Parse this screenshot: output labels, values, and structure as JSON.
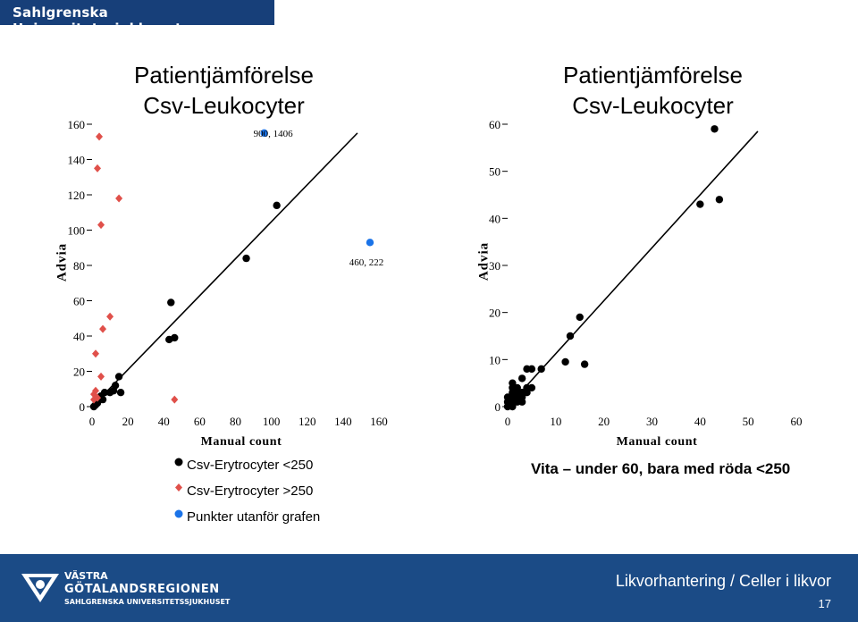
{
  "header": {
    "org_name": "Sahlgrenska Universitetssjukhuset"
  },
  "chart_data": [
    {
      "type": "scatter",
      "title": "Patientjämförelse\nCsv-Leukocyter",
      "xlabel": "Manual count",
      "ylabel": "Advia",
      "xlim": [
        0,
        160
      ],
      "ylim": [
        0,
        160
      ],
      "xticks": [
        0,
        20,
        40,
        60,
        80,
        100,
        120,
        140,
        160
      ],
      "yticks": [
        0,
        20,
        40,
        60,
        80,
        100,
        120,
        140,
        160
      ],
      "reference_line": [
        [
          0,
          0
        ],
        [
          148,
          155
        ]
      ],
      "series": [
        {
          "name": "Csv-Erytrocyter <250",
          "color": "#000000",
          "marker": "circle",
          "points": [
            [
              1,
              0
            ],
            [
              2,
              1
            ],
            [
              3,
              2
            ],
            [
              4,
              4
            ],
            [
              5,
              6
            ],
            [
              6,
              4
            ],
            [
              7,
              8
            ],
            [
              10,
              8
            ],
            [
              12,
              9
            ],
            [
              13,
              12
            ],
            [
              15,
              17
            ],
            [
              16,
              8
            ],
            [
              43,
              38
            ],
            [
              44,
              59
            ],
            [
              46,
              39
            ],
            [
              86,
              84
            ],
            [
              103,
              114
            ]
          ]
        },
        {
          "name": "Csv-Erytrocyter >250",
          "color": "#e0504a",
          "marker": "diamond",
          "points": [
            [
              1,
              4
            ],
            [
              1,
              7
            ],
            [
              2,
              9
            ],
            [
              2,
              30
            ],
            [
              3,
              5
            ],
            [
              3,
              135
            ],
            [
              4,
              153
            ],
            [
              5,
              17
            ],
            [
              5,
              103
            ],
            [
              6,
              44
            ],
            [
              10,
              51
            ],
            [
              15,
              118
            ],
            [
              46,
              4
            ]
          ]
        },
        {
          "name": "Punkter utanför grafen",
          "color": "#1a73e8",
          "marker": "circle",
          "points": [
            [
              96,
              155
            ],
            [
              155,
              93
            ]
          ]
        }
      ],
      "annotations": [
        {
          "text": "900, 1406",
          "x": 101,
          "y": 155
        },
        {
          "text": "460, 222",
          "x": 153,
          "y": 82
        }
      ]
    },
    {
      "type": "scatter",
      "title": "Patientjämförelse\nCsv-Leukocyter",
      "xlabel": "Manual count",
      "ylabel": "Advia",
      "xlim": [
        0,
        60
      ],
      "ylim": [
        0,
        60
      ],
      "xticks": [
        0,
        10,
        20,
        30,
        40,
        50,
        60
      ],
      "yticks": [
        0,
        10,
        20,
        30,
        40,
        50,
        60
      ],
      "reference_line": [
        [
          0,
          0
        ],
        [
          52,
          58.5
        ]
      ],
      "series": [
        {
          "name": "",
          "color": "#000000",
          "marker": "circle",
          "points": [
            [
              0,
              0
            ],
            [
              0,
              1
            ],
            [
              0,
              2
            ],
            [
              1,
              0
            ],
            [
              1,
              1
            ],
            [
              1,
              2
            ],
            [
              1,
              3
            ],
            [
              1,
              4
            ],
            [
              1,
              5
            ],
            [
              2,
              1
            ],
            [
              2,
              2
            ],
            [
              2,
              3
            ],
            [
              2,
              4
            ],
            [
              3,
              1
            ],
            [
              3,
              2
            ],
            [
              3,
              3
            ],
            [
              3,
              6
            ],
            [
              4,
              3
            ],
            [
              4,
              4
            ],
            [
              4,
              8
            ],
            [
              5,
              4
            ],
            [
              5,
              8
            ],
            [
              7,
              8
            ],
            [
              12,
              9.5
            ],
            [
              13,
              15
            ],
            [
              15,
              19
            ],
            [
              16,
              9
            ],
            [
              40,
              43
            ],
            [
              43,
              59
            ],
            [
              44,
              44
            ]
          ]
        }
      ]
    }
  ],
  "legend": [
    {
      "label": "Csv-Erytrocyter <250",
      "color": "#000000",
      "marker": "circle"
    },
    {
      "label": "Csv-Erytrocyter >250",
      "color": "#e0504a",
      "marker": "diamond"
    },
    {
      "label": "Punkter utanför grafen",
      "color": "#1a73e8",
      "marker": "circle"
    }
  ],
  "note": "Vita – under 60, bara med röda <250",
  "footer": {
    "title": "Likvorhantering / Celler i likvor",
    "page": "17",
    "logo_line1": "VÄSTRA",
    "logo_line2": "GÖTALANDSREGIONEN",
    "logo_line3": "SAHLGRENSKA UNIVERSITETSSJUKHUSET"
  }
}
